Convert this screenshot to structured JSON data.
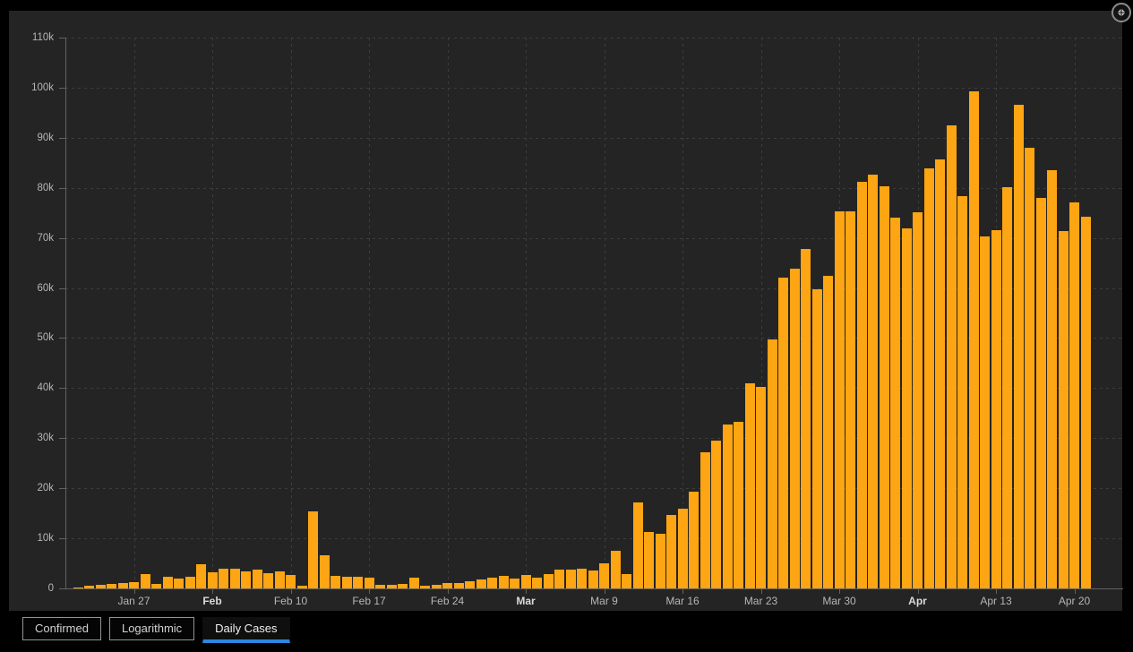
{
  "colors": {
    "page_bg": "#000000",
    "panel_bg": "#242424",
    "bar": "#fda513",
    "grid": "#3d3d3d",
    "axis": "#626262",
    "tick_label": "#b6b6b6",
    "month_tick_label": "#dadada",
    "tab_bg": "#050505",
    "tab_border": "#949494",
    "tab_text": "#d2d2d2",
    "active_tab_text": "#efefef",
    "active_tab_underline": "#2e86e0",
    "icon_circle_border": "#8d8d8d",
    "icon_glyph": "#cdcdcd"
  },
  "tabs": [
    {
      "id": "confirmed",
      "label": "Confirmed",
      "active": false
    },
    {
      "id": "logarithmic",
      "label": "Logarithmic",
      "active": false
    },
    {
      "id": "daily-cases",
      "label": "Daily Cases",
      "active": true
    }
  ],
  "controls": {
    "collapse_button": "collapse-arrows"
  },
  "chart_data": {
    "type": "bar",
    "title": "Daily Cases",
    "xlabel": "",
    "ylabel": "",
    "ylim": [
      0,
      110000
    ],
    "grid": true,
    "legend": "none",
    "y_tick_labels": [
      "0",
      "10k",
      "20k",
      "30k",
      "40k",
      "50k",
      "60k",
      "70k",
      "80k",
      "90k",
      "100k",
      "110k"
    ],
    "x_ticks": [
      {
        "label": "Jan 27",
        "day": 6,
        "bold": false
      },
      {
        "label": "Feb",
        "day": 13,
        "bold": true
      },
      {
        "label": "Feb 10",
        "day": 20,
        "bold": false
      },
      {
        "label": "Feb 17",
        "day": 27,
        "bold": false
      },
      {
        "label": "Feb 24",
        "day": 34,
        "bold": false
      },
      {
        "label": "Mar",
        "day": 41,
        "bold": true
      },
      {
        "label": "Mar 9",
        "day": 48,
        "bold": false
      },
      {
        "label": "Mar 16",
        "day": 55,
        "bold": false
      },
      {
        "label": "Mar 23",
        "day": 62,
        "bold": false
      },
      {
        "label": "Mar 30",
        "day": 69,
        "bold": false
      },
      {
        "label": "Apr",
        "day": 76,
        "bold": true
      },
      {
        "label": "Apr 13",
        "day": 83,
        "bold": false
      },
      {
        "label": "Apr 20",
        "day": 90,
        "bold": false
      }
    ],
    "categories": [
      "Jan 22",
      "Jan 23",
      "Jan 24",
      "Jan 25",
      "Jan 26",
      "Jan 27",
      "Jan 28",
      "Jan 29",
      "Jan 30",
      "Jan 31",
      "Feb 1",
      "Feb 2",
      "Feb 3",
      "Feb 4",
      "Feb 5",
      "Feb 6",
      "Feb 7",
      "Feb 8",
      "Feb 9",
      "Feb 10",
      "Feb 11",
      "Feb 12",
      "Feb 13",
      "Feb 14",
      "Feb 15",
      "Feb 16",
      "Feb 17",
      "Feb 18",
      "Feb 19",
      "Feb 20",
      "Feb 21",
      "Feb 22",
      "Feb 23",
      "Feb 24",
      "Feb 25",
      "Feb 26",
      "Feb 27",
      "Feb 28",
      "Feb 29",
      "Mar 1",
      "Mar 2",
      "Mar 3",
      "Mar 4",
      "Mar 5",
      "Mar 6",
      "Mar 7",
      "Mar 8",
      "Mar 9",
      "Mar 10",
      "Mar 11",
      "Mar 12",
      "Mar 13",
      "Mar 14",
      "Mar 15",
      "Mar 16",
      "Mar 17",
      "Mar 18",
      "Mar 19",
      "Mar 20",
      "Mar 21",
      "Mar 22",
      "Mar 23",
      "Mar 24",
      "Mar 25",
      "Mar 26",
      "Mar 27",
      "Mar 28",
      "Mar 29",
      "Mar 30",
      "Mar 31",
      "Apr 1",
      "Apr 2",
      "Apr 3",
      "Apr 4",
      "Apr 5",
      "Apr 6",
      "Apr 7",
      "Apr 8",
      "Apr 9",
      "Apr 10",
      "Apr 11",
      "Apr 12",
      "Apr 13",
      "Apr 14",
      "Apr 15",
      "Apr 16",
      "Apr 17",
      "Apr 18",
      "Apr 19",
      "Apr 20",
      "Apr 21"
    ],
    "values": [
      250,
      500,
      650,
      900,
      1000,
      1250,
      2800,
      950,
      2300,
      1950,
      2250,
      4900,
      3300,
      4000,
      3850,
      3400,
      3700,
      3100,
      3400,
      2600,
      600,
      15400,
      6600,
      2500,
      2400,
      2300,
      2100,
      800,
      800,
      950,
      2100,
      600,
      700,
      1100,
      1100,
      1500,
      1700,
      2200,
      2500,
      2000,
      2650,
      2100,
      2800,
      3800,
      3800,
      3900,
      3600,
      5000,
      7500,
      2900,
      17100,
      11300,
      10900,
      14600,
      15900,
      19400,
      27200,
      29600,
      32700,
      33200,
      40900,
      40200,
      49800,
      62100,
      63900,
      67700,
      59700,
      62500,
      75300,
      75300,
      81200,
      82700,
      80300,
      74000,
      71900,
      75100,
      83800,
      85700,
      92400,
      78400,
      99300,
      70300,
      71600,
      80100,
      96600,
      88000,
      77900,
      83500,
      71300,
      77100,
      74300
    ]
  }
}
